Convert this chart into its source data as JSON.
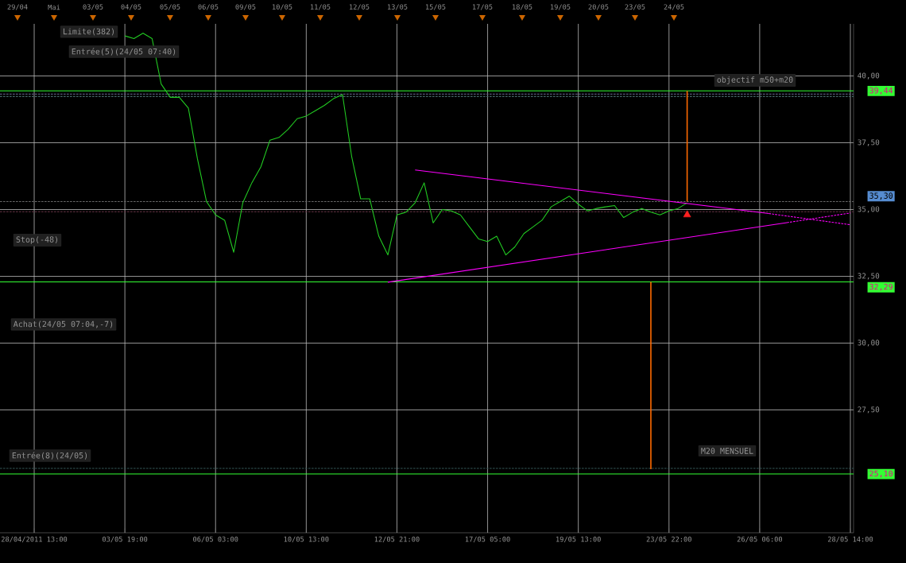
{
  "chart_data": {
    "type": "line",
    "ylim": [
      22.9,
      41.95
    ],
    "grid": true,
    "categories": [
      null,
      null,
      null,
      "28/04/2011 13:00",
      null,
      null,
      null,
      null,
      null,
      null,
      null,
      null,
      null,
      "03/05 19:00",
      null,
      null,
      null,
      null,
      null,
      null,
      null,
      null,
      null,
      "06/05 03:00",
      null,
      null,
      null,
      null,
      null,
      null,
      null,
      null,
      null,
      "10/05 13:00",
      null,
      null,
      null,
      null,
      null,
      null,
      null,
      null,
      null,
      "12/05 21:00",
      null,
      null,
      null,
      null,
      null,
      null,
      null,
      null,
      null,
      "17/05 05:00",
      null,
      null,
      null,
      null,
      null,
      null,
      null,
      null,
      null,
      "19/05 13:00",
      null,
      null,
      null,
      null,
      null,
      null,
      null,
      null,
      null,
      "23/05 22:00",
      null,
      null,
      null,
      null,
      null,
      null,
      null,
      null,
      null,
      "26/05 06:00",
      null,
      null,
      null,
      null,
      null,
      null,
      null,
      null,
      null,
      "28/05 14:00"
    ],
    "yticks": [
      {
        "value": 27.5,
        "label": "27,50"
      },
      {
        "value": 30,
        "label": "30,00"
      },
      {
        "value": 32.5,
        "label": "32,50"
      },
      {
        "value": 35,
        "label": "35,00"
      },
      {
        "value": 37.5,
        "label": "37,50"
      },
      {
        "value": 40,
        "label": "40,00"
      }
    ],
    "series": [
      {
        "color": "#22cc22",
        "values": [
          null,
          null,
          null,
          null,
          null,
          null,
          null,
          null,
          null,
          null,
          null,
          null,
          null,
          41.5,
          41.4,
          41.6,
          41.4,
          39.7,
          39.2,
          39.2,
          38.8,
          36.9,
          35.3,
          34.8,
          34.6,
          33.4,
          35.25,
          36.0,
          36.6,
          37.6,
          37.7,
          38.0,
          38.4,
          38.5,
          38.7,
          38.9,
          39.15,
          39.3,
          37.0,
          35.4,
          35.4,
          34.0,
          33.3,
          34.8,
          34.9,
          35.25,
          36.0,
          34.5,
          35.0,
          34.95,
          34.8,
          34.35,
          33.9,
          33.8,
          34.0,
          33.3,
          33.6,
          34.1,
          34.35,
          34.6,
          35.1,
          35.3,
          35.5,
          35.2,
          34.95,
          35.04,
          35.1,
          35.15,
          34.7,
          34.9,
          35.04,
          34.9,
          34.8,
          34.95,
          35.04,
          35.25,
          null,
          null,
          null,
          null,
          null,
          null,
          null,
          null,
          null,
          null,
          null,
          null,
          null,
          null,
          null,
          null,
          null,
          null
        ]
      },
      {
        "color": "#ff00ff",
        "line_style": "solid",
        "values": [
          null,
          null,
          null,
          null,
          null,
          null,
          null,
          null,
          null,
          null,
          null,
          null,
          null,
          null,
          null,
          null,
          null,
          null,
          null,
          null,
          null,
          null,
          null,
          null,
          null,
          null,
          null,
          null,
          null,
          null,
          null,
          null,
          null,
          null,
          null,
          null,
          null,
          null,
          null,
          null,
          null,
          null,
          null,
          null,
          null,
          36.48,
          null,
          null,
          null,
          null,
          null,
          null,
          null,
          null,
          null,
          null,
          null,
          null,
          null,
          null,
          null,
          null,
          null,
          null,
          null,
          null,
          null,
          null,
          null,
          null,
          null,
          null,
          null,
          null,
          null,
          null,
          null,
          null,
          null,
          null,
          null,
          null,
          null,
          null,
          34.85,
          null,
          null,
          null,
          null,
          null,
          null,
          null,
          null,
          null
        ]
      },
      {
        "color": "#ff00ff",
        "line_style": "dashed",
        "values": [
          null,
          null,
          null,
          null,
          null,
          null,
          null,
          null,
          null,
          null,
          null,
          null,
          null,
          null,
          null,
          null,
          null,
          null,
          null,
          null,
          null,
          null,
          null,
          null,
          null,
          null,
          null,
          null,
          null,
          null,
          null,
          null,
          null,
          null,
          null,
          null,
          null,
          null,
          null,
          null,
          null,
          null,
          null,
          null,
          null,
          null,
          null,
          null,
          null,
          null,
          null,
          null,
          null,
          null,
          null,
          null,
          null,
          null,
          null,
          null,
          null,
          null,
          null,
          null,
          null,
          null,
          null,
          null,
          null,
          null,
          null,
          null,
          null,
          null,
          null,
          null,
          null,
          null,
          null,
          null,
          null,
          null,
          null,
          null,
          34.85,
          null,
          null,
          null,
          null,
          null,
          null,
          null,
          null,
          34.43
        ]
      },
      {
        "color": "#ff00ff",
        "line_style": "solid",
        "values": [
          null,
          null,
          null,
          null,
          null,
          null,
          null,
          null,
          null,
          null,
          null,
          null,
          null,
          null,
          null,
          null,
          null,
          null,
          null,
          null,
          null,
          null,
          null,
          null,
          null,
          null,
          null,
          null,
          null,
          null,
          null,
          null,
          null,
          null,
          null,
          null,
          null,
          null,
          null,
          null,
          null,
          null,
          32.28,
          null,
          null,
          null,
          null,
          null,
          null,
          null,
          null,
          null,
          null,
          null,
          null,
          null,
          null,
          null,
          null,
          null,
          null,
          null,
          null,
          null,
          null,
          null,
          null,
          null,
          null,
          null,
          null,
          null,
          null,
          null,
          null,
          null,
          null,
          null,
          null,
          null,
          null,
          null,
          null,
          null,
          null,
          null,
          34.51,
          null,
          null,
          null,
          null,
          null,
          null,
          null
        ]
      },
      {
        "color": "#ff00ff",
        "line_style": "dashed",
        "values": [
          null,
          null,
          null,
          null,
          null,
          null,
          null,
          null,
          null,
          null,
          null,
          null,
          null,
          null,
          null,
          null,
          null,
          null,
          null,
          null,
          null,
          null,
          null,
          null,
          null,
          null,
          null,
          null,
          null,
          null,
          null,
          null,
          null,
          null,
          null,
          null,
          null,
          null,
          null,
          null,
          null,
          null,
          null,
          null,
          null,
          null,
          null,
          null,
          null,
          null,
          null,
          null,
          null,
          null,
          null,
          null,
          null,
          null,
          null,
          null,
          null,
          null,
          null,
          null,
          null,
          null,
          null,
          null,
          null,
          null,
          null,
          null,
          null,
          null,
          null,
          null,
          null,
          null,
          null,
          null,
          null,
          null,
          null,
          null,
          null,
          null,
          34.51,
          null,
          null,
          null,
          null,
          null,
          null,
          34.87
        ]
      },
      {
        "type": "bar",
        "color": "#ff6a00",
        "base": [
          null,
          null,
          null,
          null,
          null,
          null,
          null,
          null,
          null,
          null,
          null,
          null,
          null,
          null,
          null,
          null,
          null,
          null,
          null,
          null,
          null,
          null,
          null,
          null,
          null,
          null,
          null,
          null,
          null,
          null,
          null,
          null,
          null,
          null,
          null,
          null,
          null,
          null,
          null,
          null,
          null,
          null,
          null,
          null,
          null,
          null,
          null,
          null,
          null,
          null,
          null,
          null,
          null,
          null,
          null,
          null,
          null,
          null,
          null,
          null,
          null,
          null,
          null,
          null,
          null,
          null,
          null,
          null,
          null,
          null,
          null,
          25.28,
          null,
          null,
          null,
          35.3,
          null,
          null,
          null,
          null,
          null,
          null,
          null,
          null,
          null,
          null,
          null,
          null,
          null,
          null,
          null,
          null,
          null,
          null
        ],
        "values": [
          null,
          null,
          null,
          null,
          null,
          null,
          null,
          null,
          null,
          null,
          null,
          null,
          null,
          null,
          null,
          null,
          null,
          null,
          null,
          null,
          null,
          null,
          null,
          null,
          null,
          null,
          null,
          null,
          null,
          null,
          null,
          null,
          null,
          null,
          null,
          null,
          null,
          null,
          null,
          null,
          null,
          null,
          null,
          null,
          null,
          null,
          null,
          null,
          null,
          null,
          null,
          null,
          null,
          null,
          null,
          null,
          null,
          null,
          null,
          null,
          null,
          null,
          null,
          null,
          null,
          null,
          null,
          null,
          null,
          null,
          null,
          7.01,
          null,
          null,
          null,
          4.14,
          null,
          null,
          null,
          null,
          null,
          null,
          null,
          null,
          null,
          null,
          null,
          null,
          null,
          null,
          null,
          null,
          null,
          null
        ]
      },
      {
        "type": "scatter",
        "color": "#ff2020",
        "marker": "triangle",
        "values": [
          null,
          null,
          null,
          null,
          null,
          null,
          null,
          null,
          null,
          null,
          null,
          null,
          null,
          null,
          null,
          null,
          null,
          null,
          null,
          null,
          null,
          null,
          null,
          null,
          null,
          null,
          null,
          null,
          null,
          null,
          null,
          null,
          null,
          null,
          null,
          null,
          null,
          null,
          null,
          null,
          null,
          null,
          null,
          null,
          null,
          null,
          null,
          null,
          null,
          null,
          null,
          null,
          null,
          null,
          null,
          null,
          null,
          null,
          null,
          null,
          null,
          null,
          null,
          null,
          null,
          null,
          null,
          null,
          null,
          null,
          null,
          null,
          null,
          null,
          null,
          34.8,
          null,
          null,
          null,
          null,
          null,
          null,
          null,
          null,
          null,
          null,
          null,
          null,
          null,
          null,
          null,
          null,
          null,
          null
        ]
      }
    ],
    "ref_lines": [
      {
        "axis": "y",
        "value": 39.44,
        "label": "39,44",
        "color": "#33ff33",
        "line_style": "solid"
      },
      {
        "axis": "y",
        "value": 39.32,
        "color": "#555577",
        "line_style": "dashed"
      },
      {
        "axis": "y",
        "value": 39.23,
        "color": "#446666",
        "line_style": "dashed"
      },
      {
        "axis": "y",
        "value": 35.3,
        "label": "35,30",
        "color": "#666666",
        "line_style": "dashed"
      },
      {
        "axis": "y",
        "value": 34.92,
        "color": "#663344",
        "line_style": "dashed"
      },
      {
        "axis": "y",
        "value": 32.29,
        "label": "32,29",
        "color": "#33ff33",
        "line_style": "solid"
      },
      {
        "axis": "y",
        "value": 25.31,
        "color": "#335555",
        "line_style": "dashed"
      },
      {
        "axis": "y",
        "value": 25.1,
        "label": "25,10",
        "color": "#33ff33",
        "line_style": "solid"
      }
    ],
    "annotations": [
      "29/04",
      "Mai",
      "03/05",
      "04/05",
      "05/05",
      "06/05",
      "09/05",
      "10/05",
      "11/05",
      "12/05",
      "13/05",
      "15/05",
      "17/05",
      "18/05",
      "19/05",
      "20/05",
      "23/05",
      "24/05",
      "Limite(382)",
      "Entrée(5)(24/05 07:40)",
      "Stop(-48)",
      "Achat(24/05 07:04,-7)",
      "Entrée(8)(24/05)",
      "objectif m50+m20",
      "M20 MENSUEL"
    ]
  }
}
